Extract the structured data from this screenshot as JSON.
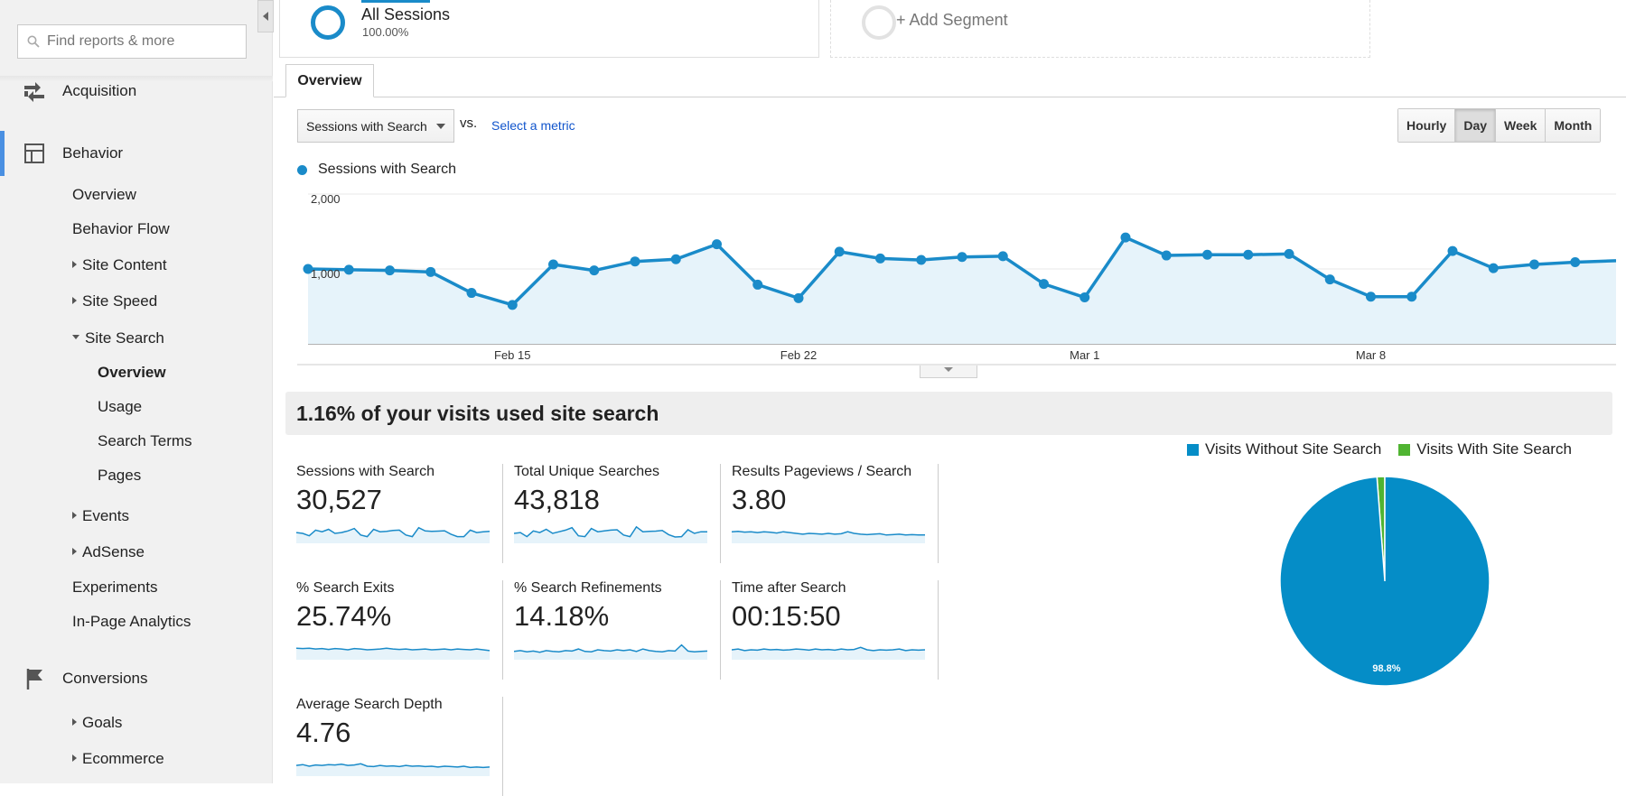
{
  "sidebar": {
    "search_placeholder": "Find reports & more",
    "sections": {
      "acquisition": "Acquisition",
      "behavior": "Behavior",
      "conversions": "Conversions"
    },
    "behavior_items": {
      "overview": "Overview",
      "behavior_flow": "Behavior Flow",
      "site_content": "Site Content",
      "site_speed": "Site Speed",
      "site_search": "Site Search",
      "ss_overview": "Overview",
      "ss_usage": "Usage",
      "ss_search_terms": "Search Terms",
      "ss_pages": "Pages",
      "events": "Events",
      "adsense": "AdSense",
      "experiments": "Experiments",
      "in_page": "In-Page Analytics"
    },
    "conversion_items": {
      "goals": "Goals",
      "ecommerce": "Ecommerce"
    }
  },
  "segments": {
    "all_title": "All Sessions",
    "all_pct": "100.00%",
    "add": "+ Add Segment"
  },
  "tabs": {
    "overview": "Overview"
  },
  "controls": {
    "metric": "Sessions with Search",
    "vs": "vs.",
    "select_metric": "Select a metric",
    "time_buttons": [
      "Hourly",
      "Day",
      "Week",
      "Month"
    ],
    "active_time": "Day"
  },
  "chart_data": [
    {
      "type": "area",
      "series": [
        {
          "name": "Sessions with Search",
          "color": "#1a8bc9",
          "values": [
            1000,
            990,
            980,
            960,
            680,
            520,
            1060,
            980,
            1100,
            1130,
            1330,
            790,
            610,
            1230,
            1140,
            1120,
            1160,
            1170,
            800,
            620,
            1420,
            1180,
            1190,
            1190,
            1200,
            860,
            630,
            630,
            1240,
            1010,
            1060,
            1090,
            1110
          ]
        }
      ],
      "x_tick_labels": [
        "Feb 15",
        "Feb 22",
        "Mar 1",
        "Mar 8"
      ],
      "x_tick_indices": [
        5,
        12,
        19,
        26
      ],
      "y_ticks": [
        "1,000",
        "2,000"
      ],
      "ylim": [
        0,
        2000
      ],
      "grid": true
    },
    {
      "type": "pie",
      "slices": [
        {
          "name": "Visits Without Site Search",
          "value": 98.8,
          "color": "#058dc7",
          "label": "98.8%"
        },
        {
          "name": "Visits With Site Search",
          "value": 1.2,
          "color": "#50b432"
        }
      ]
    }
  ],
  "summary": {
    "headline": "1.16% of your visits used site search"
  },
  "kpis": [
    {
      "label": "Sessions with Search",
      "value": "30,527",
      "spark": [
        0.55,
        0.5,
        0.35,
        0.7,
        0.6,
        0.75,
        0.5,
        0.55,
        0.65,
        0.8,
        0.4,
        0.3,
        0.75,
        0.6,
        0.62,
        0.68,
        0.7,
        0.4,
        0.3,
        0.85,
        0.65,
        0.62,
        0.64,
        0.66,
        0.45,
        0.3,
        0.3,
        0.7,
        0.55,
        0.6,
        0.62
      ]
    },
    {
      "label": "Total Unique Searches",
      "value": "43,818",
      "spark": [
        0.5,
        0.55,
        0.3,
        0.65,
        0.55,
        0.75,
        0.5,
        0.6,
        0.7,
        0.85,
        0.35,
        0.3,
        0.8,
        0.6,
        0.65,
        0.7,
        0.72,
        0.4,
        0.3,
        0.9,
        0.6,
        0.62,
        0.64,
        0.68,
        0.42,
        0.28,
        0.3,
        0.72,
        0.5,
        0.6,
        0.6
      ]
    },
    {
      "label": "Results Pageviews / Search",
      "value": "3.80",
      "spark": [
        0.6,
        0.62,
        0.58,
        0.6,
        0.55,
        0.6,
        0.57,
        0.52,
        0.6,
        0.55,
        0.5,
        0.45,
        0.5,
        0.48,
        0.45,
        0.5,
        0.45,
        0.48,
        0.6,
        0.5,
        0.45,
        0.42,
        0.45,
        0.48,
        0.4,
        0.42,
        0.45,
        0.4,
        0.42,
        0.4,
        0.4
      ]
    },
    {
      "label": "% Search Exits",
      "value": "25.74%",
      "spark": [
        0.6,
        0.58,
        0.6,
        0.55,
        0.58,
        0.52,
        0.58,
        0.55,
        0.5,
        0.58,
        0.55,
        0.5,
        0.52,
        0.55,
        0.6,
        0.55,
        0.52,
        0.55,
        0.5,
        0.52,
        0.55,
        0.5,
        0.52,
        0.55,
        0.5,
        0.55,
        0.52,
        0.5,
        0.55,
        0.5,
        0.45
      ]
    },
    {
      "label": "% Search Refinements",
      "value": "14.18%",
      "spark": [
        0.4,
        0.45,
        0.38,
        0.42,
        0.35,
        0.45,
        0.4,
        0.38,
        0.45,
        0.42,
        0.55,
        0.4,
        0.38,
        0.5,
        0.45,
        0.42,
        0.5,
        0.45,
        0.5,
        0.4,
        0.55,
        0.45,
        0.4,
        0.38,
        0.45,
        0.42,
        0.8,
        0.42,
        0.38,
        0.4,
        0.42
      ]
    },
    {
      "label": "Time after Search",
      "value": "00:15:50",
      "spark": [
        0.5,
        0.55,
        0.45,
        0.5,
        0.48,
        0.55,
        0.5,
        0.52,
        0.48,
        0.5,
        0.55,
        0.52,
        0.48,
        0.55,
        0.5,
        0.52,
        0.48,
        0.55,
        0.5,
        0.52,
        0.65,
        0.5,
        0.45,
        0.5,
        0.48,
        0.5,
        0.55,
        0.45,
        0.5,
        0.48,
        0.5
      ]
    },
    {
      "label": "Average Search Depth",
      "value": "4.76",
      "spark": [
        0.55,
        0.6,
        0.5,
        0.58,
        0.55,
        0.6,
        0.58,
        0.62,
        0.55,
        0.58,
        0.65,
        0.5,
        0.48,
        0.55,
        0.5,
        0.52,
        0.48,
        0.55,
        0.5,
        0.52,
        0.48,
        0.5,
        0.45,
        0.5,
        0.48,
        0.45,
        0.5,
        0.42,
        0.45,
        0.42,
        0.45
      ]
    }
  ]
}
